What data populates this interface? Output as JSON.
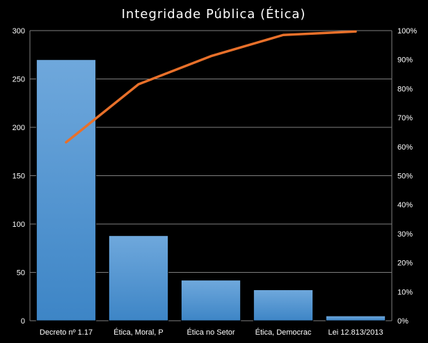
{
  "chart_data": {
    "type": "bar",
    "title": "Integridade Pública (Ética)",
    "categories": [
      "Decreto nº 1.17",
      "Ética, Moral, P",
      "Ética no Setor",
      "Ética, Democrac",
      "Lei 12.813/2013"
    ],
    "series": [
      {
        "type": "bar",
        "axis": "left",
        "values": [
          270,
          88,
          42,
          32,
          5
        ]
      },
      {
        "type": "line",
        "axis": "right",
        "values": [
          61.5,
          81.5,
          91.2,
          98.5,
          99.7
        ]
      }
    ],
    "y_left": {
      "min": 0,
      "max": 300,
      "ticks": [
        "0",
        "50",
        "100",
        "150",
        "200",
        "250",
        "300"
      ]
    },
    "y_right": {
      "min": 0,
      "max": 100,
      "ticks": [
        "0%",
        "10%",
        "20%",
        "30%",
        "40%",
        "50%",
        "60%",
        "70%",
        "80%",
        "90%",
        "100%"
      ]
    },
    "grid": true,
    "legend": "none",
    "colors": {
      "background": "#000000",
      "bar": "#3d85c6",
      "bar_light": "#6fa8dc",
      "line": "#e8702a",
      "grid": "#7f7f7f",
      "text": "#ffffff"
    }
  }
}
